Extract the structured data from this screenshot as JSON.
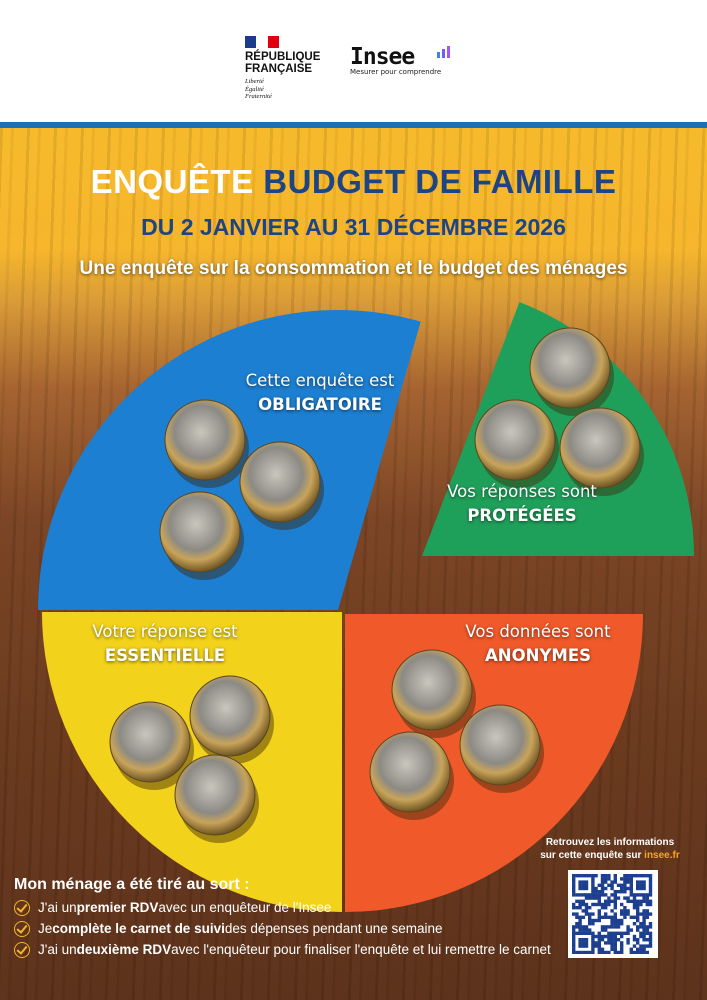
{
  "header": {
    "republique": {
      "line1": "RÉPUBLIQUE",
      "line2": "FRANÇAISE",
      "motto": [
        "Liberté",
        "Égalité",
        "Fraternité"
      ]
    },
    "insee": {
      "name": "Insee",
      "tagline": "Mesurer pour comprendre"
    }
  },
  "title": {
    "part1": "ENQUÊTE",
    "part2": "BUDGET DE FAMILLE"
  },
  "dates": "DU 2 JANVIER AU 31 DÉCEMBRE 2026",
  "subtitle": "Une enquête sur la consommation et le budget des ménages",
  "pie_labels": [
    {
      "text": "Cette enquête est",
      "emph": "OBLIGATOIRE",
      "color": "#1c7fd1"
    },
    {
      "text": "Vos réponses sont",
      "emph": "PROTÉGÉES",
      "color": "#1fa05a"
    },
    {
      "text": "Votre réponse est",
      "emph": "ESSENTIELLE",
      "color": "#f2d21a"
    },
    {
      "text": "Vos données sont",
      "emph": "ANONYMES",
      "color": "#f0592a"
    }
  ],
  "qr": {
    "line1": "Retrouvez les informations",
    "line2": "sur cette enquête sur ",
    "link": "insee.fr"
  },
  "bottom": {
    "heading": "Mon ménage a été tiré au sort :",
    "steps": [
      {
        "pre": "J'ai un ",
        "bold": "premier RDV",
        "post": " avec un enquêteur de l'Insee"
      },
      {
        "pre": "Je ",
        "bold": "complète le carnet de suivi",
        "post": " des dépenses pendant une semaine"
      },
      {
        "pre": "J'ai un ",
        "bold": "deuxième RDV",
        "post": " avec l'enquêteur pour finaliser l'enquête et lui remettre le carnet"
      }
    ]
  },
  "colors": {
    "navy": "#1d4583",
    "yellow_band": "#f7b92a",
    "accent": "#f5a623"
  }
}
